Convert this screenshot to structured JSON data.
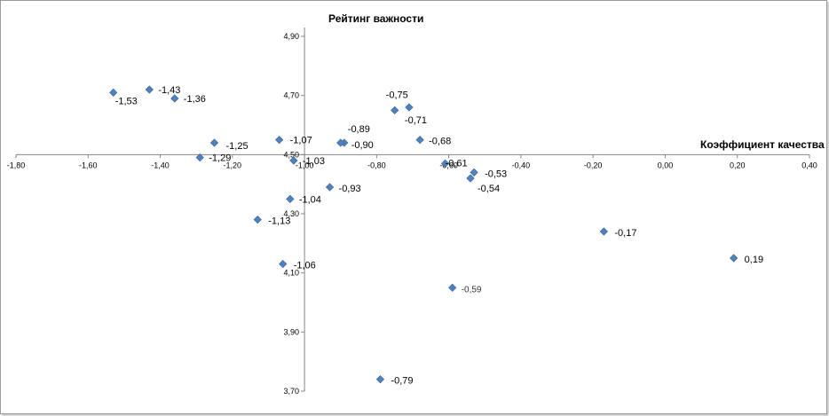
{
  "chart_data": {
    "type": "scatter",
    "xlabel": "Коэффициент качества",
    "ylabel": "Рейтинг важности",
    "xlim": [
      -1.8,
      0.4
    ],
    "ylim": [
      3.7,
      4.9
    ],
    "x_ticks": [
      "-1,80",
      "-1,60",
      "-1,40",
      "-1,20",
      "-1,00",
      "-0,80",
      "-0,60",
      "-0,40",
      "-0,20",
      "0,00",
      "0,20",
      "0,40"
    ],
    "y_ticks": [
      "3,70",
      "3,90",
      "4,10",
      "4,30",
      "4,50",
      "4,70",
      "4,90"
    ],
    "marker_color": "#4f81bd",
    "points": [
      {
        "x": -1.53,
        "y": 4.71,
        "label": "-1,53"
      },
      {
        "x": -1.43,
        "y": 4.72,
        "label": "-1,43"
      },
      {
        "x": -1.36,
        "y": 4.69,
        "label": "-1,36"
      },
      {
        "x": -1.25,
        "y": 4.54,
        "label": "-1,25"
      },
      {
        "x": -1.29,
        "y": 4.49,
        "label": "-1,29"
      },
      {
        "x": -1.07,
        "y": 4.55,
        "label": "-1,07"
      },
      {
        "x": -1.03,
        "y": 4.48,
        "label": "-1,03"
      },
      {
        "x": -0.89,
        "y": 4.54,
        "label": "-0,89"
      },
      {
        "x": -0.9,
        "y": 4.54,
        "label": "-0,90"
      },
      {
        "x": -0.75,
        "y": 4.65,
        "label": "-0,75"
      },
      {
        "x": -0.71,
        "y": 4.66,
        "label": "-0,71"
      },
      {
        "x": -0.68,
        "y": 4.55,
        "label": "-0,68"
      },
      {
        "x": -0.61,
        "y": 4.47,
        "label": "-0,61"
      },
      {
        "x": -0.53,
        "y": 4.44,
        "label": "-0,53"
      },
      {
        "x": -0.54,
        "y": 4.42,
        "label": "-0,54"
      },
      {
        "x": -0.93,
        "y": 4.39,
        "label": "-0,93"
      },
      {
        "x": -1.04,
        "y": 4.35,
        "label": "-1,04"
      },
      {
        "x": -1.13,
        "y": 4.28,
        "label": "-1,13"
      },
      {
        "x": -0.17,
        "y": 4.24,
        "label": "-0,17"
      },
      {
        "x": 0.19,
        "y": 4.15,
        "label": "0,19"
      },
      {
        "x": -1.06,
        "y": 4.13,
        "label": "-1,06"
      },
      {
        "x": -0.59,
        "y": 4.05,
        "label": "-0,59"
      },
      {
        "x": -0.79,
        "y": 3.74,
        "label": "-0,79"
      }
    ]
  }
}
